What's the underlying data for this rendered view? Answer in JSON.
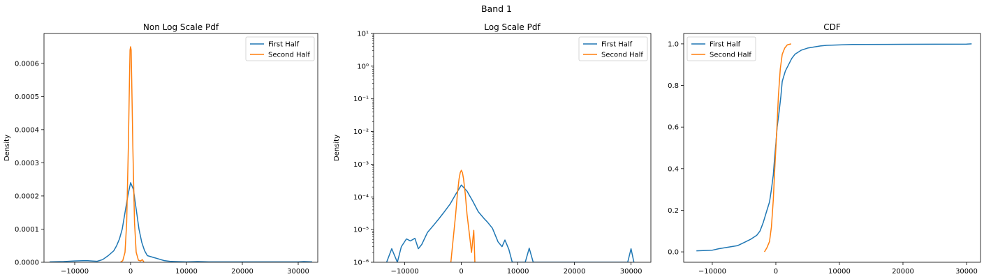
{
  "figure": {
    "suptitle": "Band 1"
  },
  "colors": {
    "first_half": "#1f77b4",
    "second_half": "#ff7f0e"
  },
  "chart_data": [
    {
      "type": "line",
      "title": "Non Log Scale Pdf",
      "xlabel": "",
      "ylabel": "Density",
      "xlim": [
        -15500,
        33500
      ],
      "ylim": [
        0,
        0.00069
      ],
      "yscale": "linear",
      "xticks": [
        -10000,
        0,
        10000,
        20000,
        30000
      ],
      "xtick_labels": [
        "−10000",
        "0",
        "10000",
        "20000",
        "30000"
      ],
      "yticks": [
        0,
        0.0001,
        0.0002,
        0.0003,
        0.0004,
        0.0005,
        0.0006
      ],
      "ytick_labels": [
        "0.0000",
        "0.0001",
        "0.0002",
        "0.0003",
        "0.0004",
        "0.0005",
        "0.0006"
      ],
      "legend": {
        "placement": "top-right",
        "entries": [
          "First Half",
          "Second Half"
        ]
      },
      "series": [
        {
          "name": "First Half",
          "x": [
            -14500,
            -12000,
            -10000,
            -8000,
            -6000,
            -5000,
            -4000,
            -3000,
            -2500,
            -2000,
            -1500,
            -1000,
            -500,
            0,
            500,
            1000,
            1500,
            2000,
            2500,
            3000,
            4000,
            5000,
            6000,
            7000,
            8000,
            10000,
            12000,
            14000,
            20000,
            25000,
            30000,
            31000,
            32500
          ],
          "y": [
            1e-06,
            2e-06,
            4e-06,
            5e-06,
            3e-06,
            8e-06,
            2e-05,
            3.5e-05,
            5e-05,
            7e-05,
            0.0001,
            0.00015,
            0.0002,
            0.00024,
            0.00022,
            0.00016,
            0.0001,
            6e-05,
            3.5e-05,
            2e-05,
            1.5e-05,
            1e-05,
            5e-06,
            3e-06,
            2e-06,
            1e-06,
            2e-06,
            1e-06,
            1e-06,
            1e-06,
            1e-06,
            2e-06,
            1e-06
          ]
        },
        {
          "name": "Second Half",
          "x": [
            -1800,
            -1400,
            -1000,
            -700,
            -400,
            -200,
            -100,
            0,
            100,
            200,
            400,
            700,
            1000,
            1400,
            1800,
            2100,
            2400
          ],
          "y": [
            0,
            5e-06,
            3e-05,
            0.00012,
            0.00035,
            0.00055,
            0.00064,
            0.00065,
            0.00064,
            0.00055,
            0.00035,
            0.00012,
            3e-05,
            6e-06,
            4e-06,
            8e-06,
            0
          ]
        }
      ]
    },
    {
      "type": "line",
      "title": "Log Scale Pdf",
      "xlabel": "",
      "ylabel": "Density",
      "xlim": [
        -15500,
        33500
      ],
      "ylim": [
        1e-06,
        10
      ],
      "yscale": "log",
      "xticks": [
        -10000,
        0,
        10000,
        20000,
        30000
      ],
      "xtick_labels": [
        "−10000",
        "0",
        "10000",
        "20000",
        "30000"
      ],
      "yticks": [
        1e-06,
        1e-05,
        0.0001,
        0.001,
        0.01,
        0.1,
        1,
        10
      ],
      "ytick_labels": [
        "10⁻⁶",
        "10⁻⁵",
        "10⁻⁴",
        "10⁻³",
        "10⁻²",
        "10⁻¹",
        "10⁰",
        "10¹"
      ],
      "legend": {
        "placement": "top-right",
        "entries": [
          "First Half",
          "Second Half"
        ]
      },
      "series": [
        {
          "name": "First Half",
          "x": [
            -13200,
            -12300,
            -11300,
            -10600,
            -9700,
            -9000,
            -8200,
            -7600,
            -7000,
            -6000,
            -5000,
            -4000,
            -3000,
            -2000,
            -1000,
            0,
            1000,
            2000,
            3000,
            4000,
            4600,
            5500,
            6500,
            7200,
            7700,
            8400,
            9000,
            11300,
            12000,
            12700,
            29400,
            30000,
            30500
          ],
          "y": [
            1e-06,
            2.6e-06,
            1e-06,
            3e-06,
            5.2e-06,
            4.5e-06,
            5.4e-06,
            2.6e-06,
            3.5e-06,
            8.1e-06,
            1.3e-05,
            2.1e-05,
            3.5e-05,
            6e-05,
            0.00012,
            0.00023,
            0.00015,
            7.5e-05,
            3.5e-05,
            2.2e-05,
            1.7e-05,
            1.1e-05,
            4.2e-06,
            3e-06,
            4.8e-06,
            2.5e-06,
            1e-06,
            1e-06,
            2.7e-06,
            1e-06,
            1e-06,
            2.6e-06,
            1e-06
          ]
        },
        {
          "name": "Second Half",
          "x": [
            -1850,
            -1500,
            -1000,
            -700,
            -400,
            -200,
            0,
            200,
            400,
            700,
            1000,
            1400,
            1800,
            2000,
            2200,
            2400
          ],
          "y": [
            1e-06,
            4e-06,
            3e-05,
            0.00012,
            0.00035,
            0.00055,
            0.00065,
            0.00055,
            0.00035,
            0.00012,
            3e-05,
            8e-06,
            2e-06,
            4.5e-06,
            9.5e-06,
            1e-06
          ]
        }
      ]
    },
    {
      "type": "line",
      "title": "CDF",
      "xlabel": "",
      "ylabel": "",
      "xlim": [
        -14500,
        32200
      ],
      "ylim": [
        -0.05,
        1.05
      ],
      "yscale": "linear",
      "xticks": [
        -10000,
        0,
        10000,
        20000,
        30000
      ],
      "xtick_labels": [
        "−10000",
        "0",
        "10000",
        "20000",
        "30000"
      ],
      "yticks": [
        0,
        0.2,
        0.4,
        0.6,
        0.8,
        1.0
      ],
      "ytick_labels": [
        "0.0",
        "0.2",
        "0.4",
        "0.6",
        "0.8",
        "1.0"
      ],
      "legend": {
        "placement": "top-left",
        "entries": [
          "First Half",
          "Second Half"
        ]
      },
      "series": [
        {
          "name": "First Half",
          "x": [
            -12500,
            -10000,
            -9000,
            -8000,
            -6000,
            -5000,
            -4000,
            -3000,
            -2500,
            -2000,
            -1500,
            -1000,
            -700,
            -400,
            -200,
            0,
            200,
            500,
            800,
            1000,
            1500,
            2000,
            2500,
            3000,
            4000,
            5000,
            6000,
            7000,
            8000,
            10000,
            12000,
            20000,
            30000,
            30800
          ],
          "y": [
            0.005,
            0.008,
            0.015,
            0.02,
            0.03,
            0.045,
            0.06,
            0.08,
            0.1,
            0.14,
            0.19,
            0.24,
            0.3,
            0.37,
            0.45,
            0.52,
            0.6,
            0.67,
            0.75,
            0.82,
            0.87,
            0.9,
            0.93,
            0.95,
            0.97,
            0.98,
            0.985,
            0.99,
            0.993,
            0.995,
            0.997,
            0.998,
            0.999,
            1.0
          ]
        },
        {
          "name": "Second Half",
          "x": [
            -1800,
            -1400,
            -1000,
            -700,
            -400,
            -200,
            0,
            200,
            400,
            700,
            1000,
            1400,
            1800,
            2400
          ],
          "y": [
            0.0,
            0.02,
            0.05,
            0.12,
            0.25,
            0.38,
            0.5,
            0.62,
            0.75,
            0.88,
            0.95,
            0.98,
            0.995,
            1.0
          ]
        }
      ]
    }
  ]
}
